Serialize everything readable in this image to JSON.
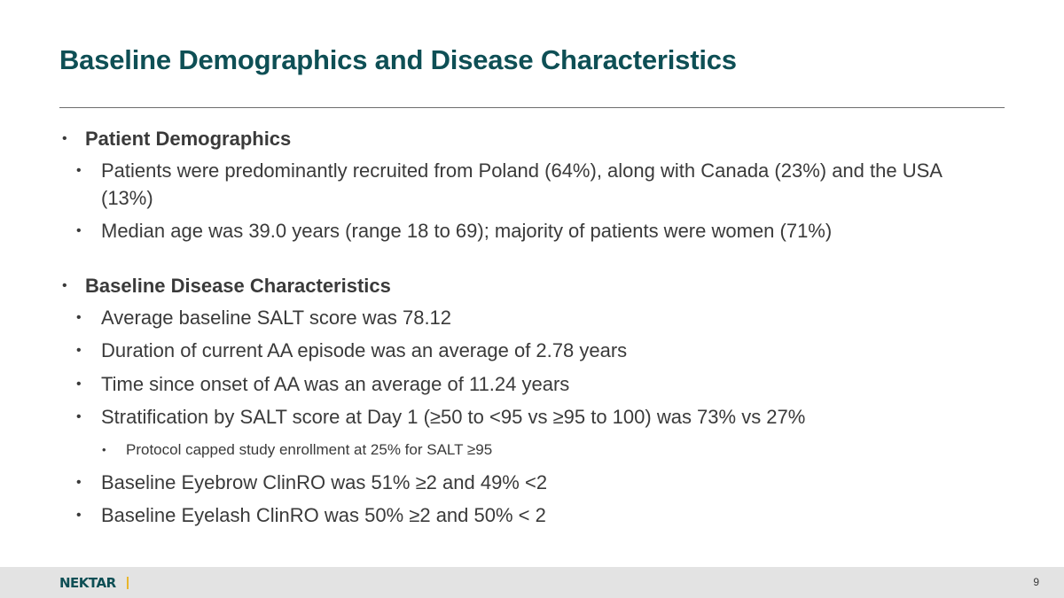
{
  "slide": {
    "title": "Baseline Demographics and Disease Characteristics",
    "sections": [
      {
        "heading": "Patient Demographics",
        "bullets": [
          "Patients were predominantly recruited from Poland (64%), along with Canada (23%) and the USA (13%)",
          "Median age was 39.0 years (range 18 to 69); majority of patients were women (71%)"
        ]
      },
      {
        "heading": "Baseline Disease Characteristics",
        "bullets": [
          "Average baseline SALT score was 78.12",
          "Duration of current AA episode was an average of 2.78 years",
          "Time since onset of AA was an average of 11.24 years",
          "Stratification by SALT score at Day 1 (≥50 to <95 vs ≥95 to 100) was 73% vs 27%",
          "Baseline Eyebrow ClinRO was 51% ≥2 and 49% <2",
          "Baseline Eyelash ClinRO was 50% ≥2 and 50% < 2"
        ],
        "sub_bullets": [
          "Protocol capped study enrollment at 25% for SALT ≥95"
        ]
      }
    ]
  },
  "bullet_glyph": "•",
  "footer": {
    "logo_text": "NEKTAR",
    "page_number": "9"
  }
}
